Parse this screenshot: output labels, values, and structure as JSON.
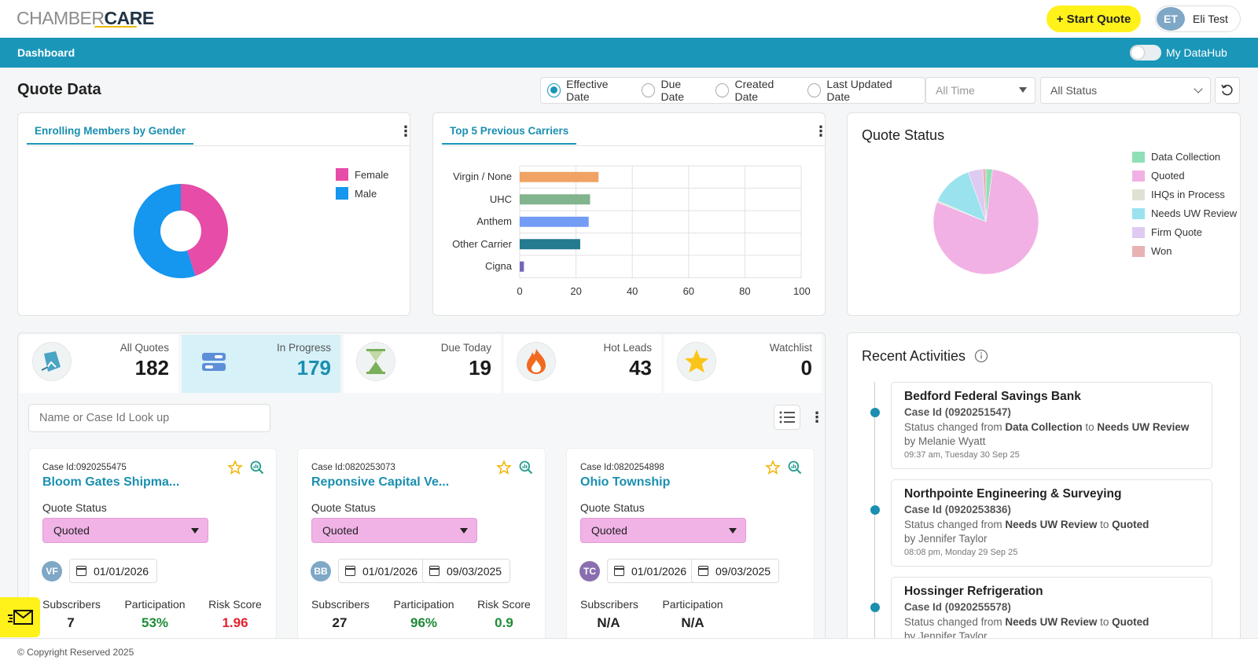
{
  "header": {
    "logo_part1": "CHAMBER",
    "logo_part2": "CARE",
    "start_quote_label": "+ Start Quote",
    "user_initials": "ET",
    "user_name": "Eli Test"
  },
  "nav": {
    "title": "Dashboard",
    "datahub_label": "My DataHub",
    "datahub_on": false
  },
  "filters": {
    "page_title": "Quote Data",
    "date_options": [
      "Effective Date",
      "Due Date",
      "Created Date",
      "Last Updated Date"
    ],
    "selected_date_option": "Effective Date",
    "time_range": "All Time",
    "status": "All Status"
  },
  "gender_card": {
    "tab_label": "Enrolling Members by Gender",
    "chart_data": {
      "type": "pie",
      "donut": true,
      "categories": [
        "Female",
        "Male"
      ],
      "values": [
        45,
        55
      ],
      "colors": [
        "#e64ca8",
        "#1596ef"
      ]
    }
  },
  "carriers_card": {
    "tab_label": "Top 5 Previous Carriers",
    "chart_data": {
      "type": "bar",
      "orientation": "horizontal",
      "categories": [
        "Virgin / None",
        "UHC",
        "Anthem",
        "Other Carrier",
        "Cigna"
      ],
      "values": [
        28,
        25,
        24.5,
        21.5,
        1.5
      ],
      "colors": [
        "#f0a364",
        "#82b48e",
        "#739cf5",
        "#247a8e",
        "#7566bb"
      ],
      "xlim": [
        0,
        100
      ],
      "xticks": [
        "0",
        "20",
        "40",
        "60",
        "80",
        "100"
      ]
    }
  },
  "status_card": {
    "title": "Quote Status",
    "chart_data": {
      "type": "pie",
      "categories": [
        "Data Collection",
        "Quoted",
        "IHQs in Process",
        "Needs UW Review",
        "Firm Quote",
        "Won"
      ],
      "values": [
        2,
        79,
        0.5,
        13,
        4.5,
        1
      ],
      "colors": [
        "#8fe0b7",
        "#f2b1e4",
        "#e1e1d3",
        "#9ae3ee",
        "#dfcaf2",
        "#e8b2b3"
      ]
    }
  },
  "stats": [
    {
      "label": "All Quotes",
      "value": "182",
      "icon": "quote-icon"
    },
    {
      "label": "In Progress",
      "value": "179",
      "icon": "progress-icon"
    },
    {
      "label": "Due Today",
      "value": "19",
      "icon": "hourglass-icon"
    },
    {
      "label": "Hot Leads",
      "value": "43",
      "icon": "flame-icon"
    },
    {
      "label": "Watchlist",
      "value": "0",
      "icon": "star-icon"
    }
  ],
  "search": {
    "placeholder": "Name or Case Id Look up"
  },
  "quote_status_label": "Quote Status",
  "metric_labels": {
    "subscribers": "Subscribers",
    "participation": "Participation",
    "risk": "Risk Score"
  },
  "quotes": [
    {
      "case_id": "Case Id:0920255475",
      "name": "Bloom Gates Shipma...",
      "status": "Quoted",
      "initials": "VF",
      "avatar_color": "#7fa7c6",
      "date1": "01/01/2026",
      "subscribers": "7",
      "participation": "53%",
      "risk": "1.96",
      "risk_color": "#e5202f"
    },
    {
      "case_id": "Case Id:0820253073",
      "name": "Reponsive Capital Ve...",
      "status": "Quoted",
      "initials": "BB",
      "avatar_color": "#7fa7c6",
      "date1": "01/01/2026",
      "date2": "09/03/2025",
      "subscribers": "27",
      "participation": "96%",
      "risk": "0.9",
      "risk_color": "#1e8b36"
    },
    {
      "case_id": "Case Id:0820254898",
      "name": "Ohio Township",
      "status": "Quoted",
      "initials": "TC",
      "avatar_color": "#8a6fb0",
      "date1": "01/01/2026",
      "date2": "09/03/2025",
      "subscribers": "N/A",
      "participation": "N/A"
    }
  ],
  "recent": {
    "title": "Recent Activities",
    "items": [
      {
        "company": "Bedford Federal Savings Bank",
        "case": "Case Id (0920251547)",
        "prefix": "Status changed from ",
        "from": "Data Collection",
        "mid": " to ",
        "to": "Needs UW Review",
        "by": "by Melanie Wyatt",
        "time": "09:37 am, Tuesday 30 Sep 25"
      },
      {
        "company": "Northpointe Engineering & Surveying",
        "case": "Case Id (0920253836)",
        "prefix": "Status changed from ",
        "from": "Needs UW Review",
        "mid": " to ",
        "to": "Quoted",
        "by": "by Jennifer Taylor",
        "time": "08:08 pm, Monday 29 Sep 25"
      },
      {
        "company": "Hossinger Refrigeration",
        "case": "Case Id (0920255578)",
        "prefix": "Status changed from ",
        "from": "Needs UW Review",
        "mid": " to ",
        "to": "Quoted",
        "by": "by Jennifer Taylor",
        "time": ""
      }
    ]
  },
  "footer": {
    "text": "© Copyright Reserved 2025"
  }
}
